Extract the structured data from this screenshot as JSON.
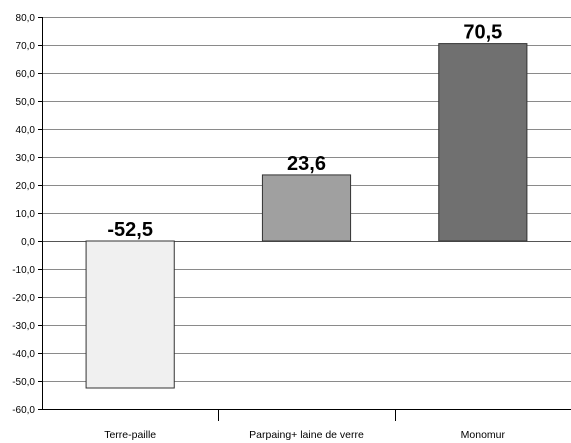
{
  "chart_data": {
    "type": "bar",
    "title": "",
    "xlabel": "",
    "ylabel": "",
    "categories": [
      "Terre-paille",
      "Parpaing+ laine de verre",
      "Monomur"
    ],
    "values": [
      -52.5,
      23.6,
      70.5
    ],
    "value_labels": [
      "-52,5",
      "23,6",
      "70,5"
    ],
    "bar_colors": [
      "#f0f0f0",
      "#a0a0a0",
      "#707070"
    ],
    "ylim": [
      -60,
      80
    ],
    "yticks": [
      80,
      70,
      60,
      50,
      40,
      30,
      20,
      10,
      0,
      -10,
      -20,
      -30,
      -40,
      -50,
      -60
    ],
    "ytick_labels": [
      "80,0",
      "70,0",
      "60,0",
      "50,0",
      "40,0",
      "30,0",
      "20,0",
      "10,0",
      "0,0",
      "-10,0",
      "-20,0",
      "-30,0",
      "-40,0",
      "-50,0",
      "-60,0"
    ],
    "grid": true,
    "legend": "none"
  }
}
